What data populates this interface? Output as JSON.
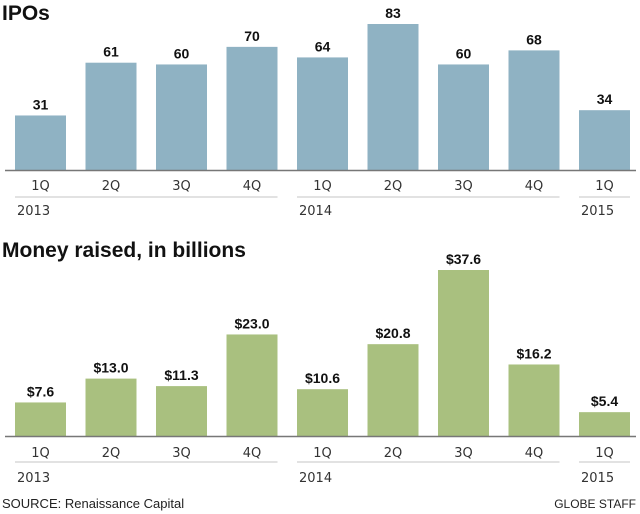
{
  "colors": {
    "ipo_bar": "#8fb2c3",
    "money_bar": "#a9c07f",
    "axis": "#777777",
    "underline": "#d8d8d8"
  },
  "chart_data": [
    {
      "type": "bar",
      "title": "IPOs",
      "categories": [
        "1Q",
        "2Q",
        "3Q",
        "4Q",
        "1Q",
        "2Q",
        "3Q",
        "4Q",
        "1Q"
      ],
      "years": [
        {
          "label": "2013",
          "span": 4
        },
        {
          "label": "2014",
          "span": 4
        },
        {
          "label": "2015",
          "span": 1
        }
      ],
      "values": [
        31,
        61,
        60,
        70,
        64,
        83,
        60,
        68,
        34
      ],
      "labels": [
        "31",
        "61",
        "60",
        "70",
        "64",
        "83",
        "60",
        "68",
        "34"
      ],
      "xlabel": "",
      "ylabel": "",
      "ylim": [
        0,
        83
      ]
    },
    {
      "type": "bar",
      "title": "Money raised, in billions",
      "categories": [
        "1Q",
        "2Q",
        "3Q",
        "4Q",
        "1Q",
        "2Q",
        "3Q",
        "4Q",
        "1Q"
      ],
      "years": [
        {
          "label": "2013",
          "span": 4
        },
        {
          "label": "2014",
          "span": 4
        },
        {
          "label": "2015",
          "span": 1
        }
      ],
      "values": [
        7.6,
        13.0,
        11.3,
        23.0,
        10.6,
        20.8,
        37.6,
        16.2,
        5.4
      ],
      "labels": [
        "$7.6",
        "$13.0",
        "$11.3",
        "$23.0",
        "$10.6",
        "$20.8",
        "$37.6",
        "$16.2",
        "$5.4"
      ],
      "xlabel": "",
      "ylabel": "",
      "ylim": [
        0,
        37.6
      ]
    }
  ],
  "footer": {
    "source": "SOURCE: Renaissance Capital",
    "credit": "GLOBE STAFF"
  }
}
